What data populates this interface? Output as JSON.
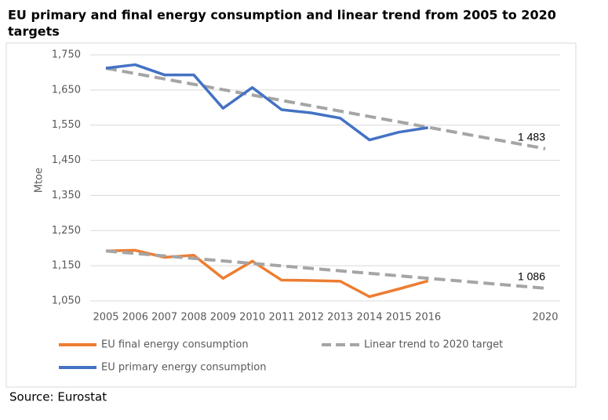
{
  "chart_data": {
    "type": "line",
    "title": "EU primary and final energy consumption and linear trend from 2005 to 2020 targets",
    "y_label": "Mtoe",
    "source": "Source: Eurostat",
    "xlim": [
      2005,
      2020
    ],
    "xticks": [
      2005,
      2006,
      2007,
      2008,
      2009,
      2010,
      2011,
      2012,
      2013,
      2014,
      2015,
      2016,
      2020
    ],
    "ylim": [
      1050,
      1750
    ],
    "yticks": [
      {
        "value": 1050,
        "label": "1,050"
      },
      {
        "value": 1150,
        "label": "1,150"
      },
      {
        "value": 1250,
        "label": "1,250"
      },
      {
        "value": 1350,
        "label": "1,350"
      },
      {
        "value": 1450,
        "label": "1,450"
      },
      {
        "value": 1550,
        "label": "1,550"
      },
      {
        "value": 1650,
        "label": "1,650"
      },
      {
        "value": 1750,
        "label": "1,750"
      }
    ],
    "grid": true,
    "series": [
      {
        "name": "EU final energy consumption",
        "color": "#ed7d31",
        "dashed": false,
        "x": [
          2005,
          2006,
          2007,
          2008,
          2009,
          2010,
          2011,
          2012,
          2013,
          2014,
          2015,
          2016
        ],
        "values": [
          1192,
          1194,
          1174,
          1180,
          1114,
          1163,
          1109,
          1108,
          1106,
          1062,
          1084,
          1107
        ]
      },
      {
        "name": "Linear trend to 2020 target",
        "color": "#a5a5a5",
        "dashed": true,
        "x": [
          2005,
          2020,
          null,
          2005,
          2020
        ],
        "values": [
          1712,
          1483,
          null,
          1192,
          1086
        ],
        "value_labels": [
          null,
          "1 483",
          null,
          null,
          "1 086"
        ]
      },
      {
        "name": "EU primary energy consumption",
        "color": "#4472c4",
        "dashed": false,
        "x": [
          2005,
          2006,
          2007,
          2008,
          2009,
          2010,
          2011,
          2012,
          2013,
          2014,
          2015,
          2016
        ],
        "values": [
          1712,
          1722,
          1693,
          1693,
          1598,
          1657,
          1594,
          1585,
          1570,
          1508,
          1530,
          1543
        ]
      }
    ]
  }
}
